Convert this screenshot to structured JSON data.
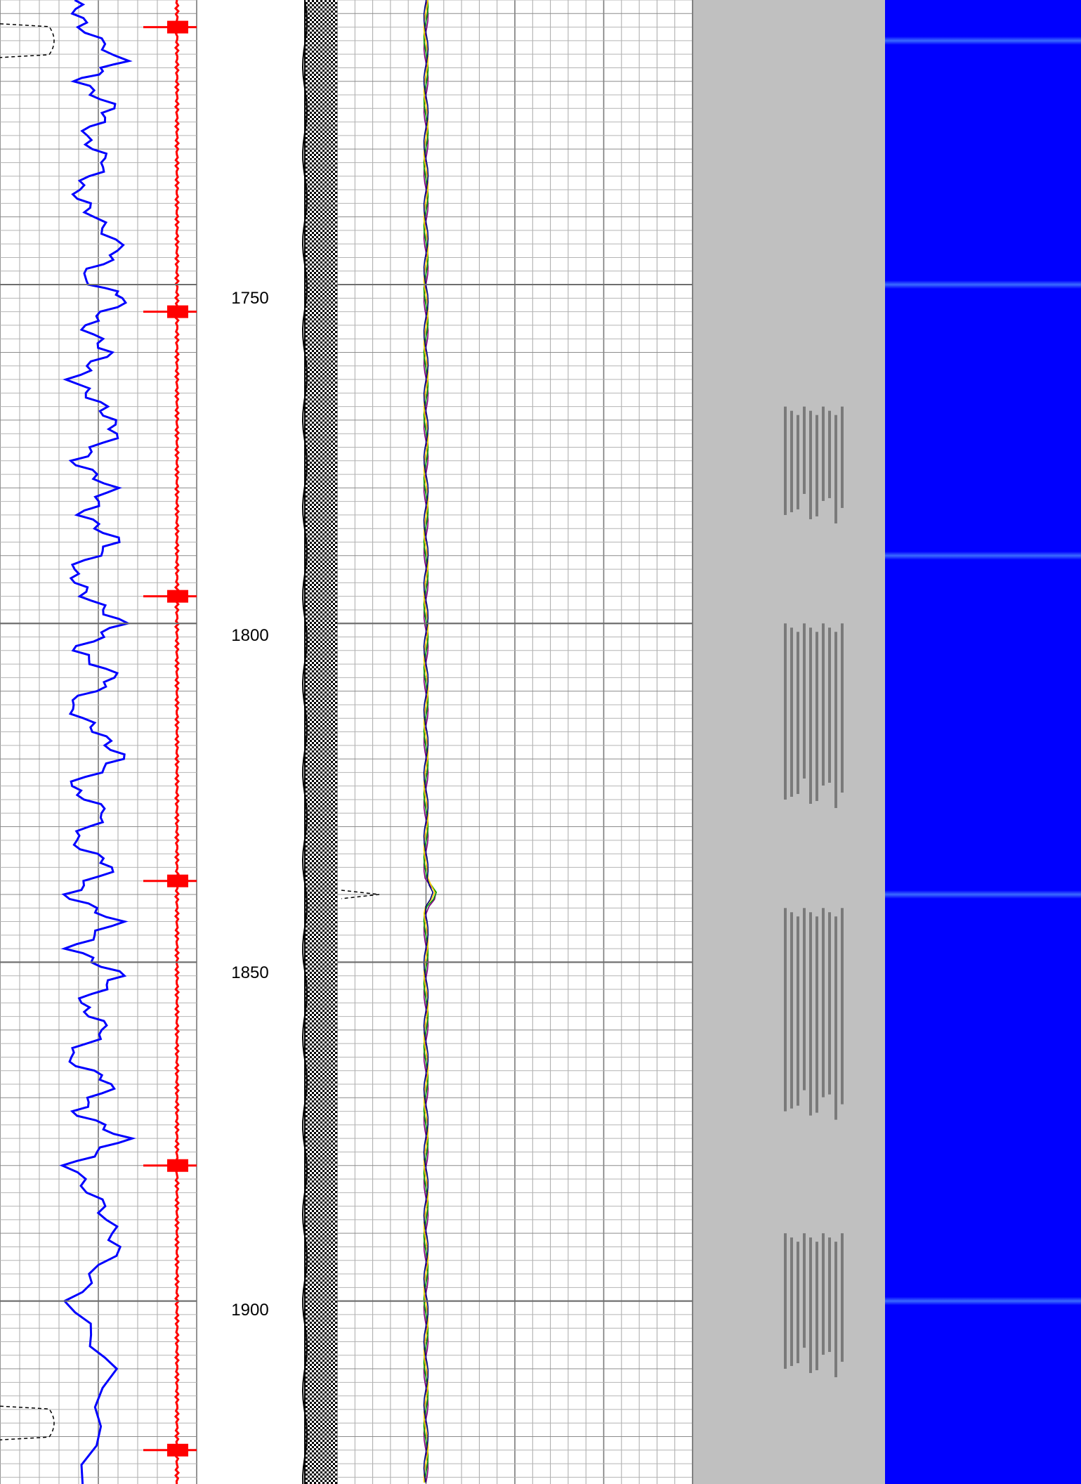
{
  "chart_data": {
    "type": "line",
    "title": "",
    "depth_axis": {
      "range": [
        1708,
        1927
      ],
      "tick_labels": [
        "1750",
        "1800",
        "1850",
        "1900"
      ],
      "tick_values": [
        1750,
        1800,
        1850,
        1900
      ],
      "orientation": "vertical, increasing downward"
    },
    "tracks": [
      {
        "name": "",
        "grid": "on",
        "series": [
          {
            "name": "",
            "color": "#0000ff",
            "style": "solid",
            "kind": "oscillating gamma-like curve",
            "x": [
              0.38,
              0.42,
              0.62,
              0.4,
              0.58,
              0.42,
              0.55,
              0.38,
              0.48,
              0.62,
              0.4,
              0.65,
              0.43,
              0.55,
              0.37,
              0.52,
              0.6,
              0.38,
              0.57,
              0.42,
              0.6,
              0.36,
              0.44,
              0.62,
              0.38,
              0.6,
              0.34,
              0.5,
              0.62,
              0.35,
              0.55,
              0.36,
              0.58,
              0.34,
              0.6,
              0.36,
              0.62,
              0.4,
              0.55,
              0.33,
              0.58,
              0.38,
              0.64,
              0.35,
              0.52,
              0.6,
              0.36,
              0.56,
              0.42
            ],
            "y": [
              1708,
              1712,
              1717,
              1720,
              1724,
              1728,
              1732,
              1736,
              1740,
              1745,
              1749,
              1752,
              1756,
              1760,
              1764,
              1768,
              1772,
              1776,
              1780,
              1784,
              1788,
              1792,
              1796,
              1800,
              1804,
              1808,
              1812,
              1816,
              1820,
              1824,
              1828,
              1832,
              1836,
              1840,
              1844,
              1848,
              1852,
              1856,
              1860,
              1864,
              1868,
              1872,
              1876,
              1880,
              1886,
              1892,
              1900,
              1910,
              1927
            ]
          },
          {
            "name": "",
            "color": "#ff0000",
            "style": "solid",
            "kind": "near-constant curve with periodic spikes",
            "x_baseline": 0.9,
            "spike_depths": [
              1712,
              1754,
              1796,
              1838,
              1880,
              1922
            ]
          },
          {
            "name": "",
            "color": "#000000",
            "style": "dashed",
            "kind": "excursion curve near left edge",
            "excursion_depths": [
              1714,
              1918
            ]
          }
        ]
      },
      {
        "name": "",
        "kind": "caliper / borehole shading",
        "fill": "checkered black-white"
      },
      {
        "name": "",
        "grid": "on",
        "series": [
          {
            "name": "",
            "color": "#800080",
            "style": "solid",
            "kind": "near-vertical multicolor curves",
            "x_baseline": 0.25,
            "excursion_depth": 1840
          }
        ]
      },
      {
        "name": "",
        "kind": "variable-density waveform image",
        "background": "#c0c0c0",
        "feature_depth_ranges": [
          [
            1768,
            1784
          ],
          [
            1800,
            1826
          ],
          [
            1842,
            1872
          ],
          [
            1890,
            1910
          ]
        ]
      },
      {
        "name": "",
        "kind": "color image",
        "background": "#0000ff",
        "bright_band_depths": [
          1714,
          1750,
          1790,
          1840,
          1900
        ]
      }
    ]
  }
}
